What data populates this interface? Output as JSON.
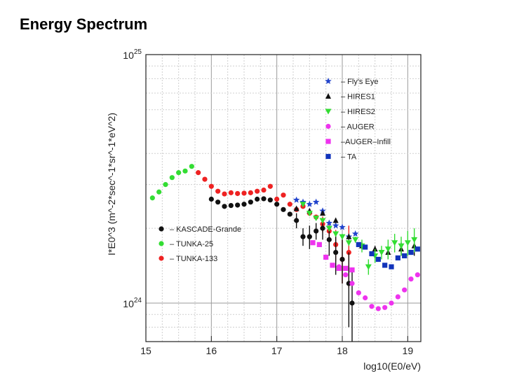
{
  "slide": {
    "title": "Energy Spectrum"
  },
  "chart_data": {
    "type": "scatter",
    "title": "Energy Spectrum",
    "xlabel": "log10(E0/eV)",
    "ylabel": "I*E0^3 (m^-2*sec^-1*sr^-1*eV^2)",
    "xlim": [
      15,
      19.2
    ],
    "ylim": [
      7e+23,
      1e+25
    ],
    "yscale": "log",
    "x_ticks": [
      15,
      16,
      17,
      18,
      19
    ],
    "x_tick_labels": [
      "15",
      "16",
      "17",
      "18",
      "19"
    ],
    "y_tick_labels": [
      {
        "value": 1e+24,
        "base": "10",
        "exp": "24"
      },
      {
        "value": 1e+25,
        "base": "10",
        "exp": "25"
      }
    ],
    "grid": true,
    "legends": [
      {
        "position": "top-right",
        "entries": [
          "Fly's Eye",
          "HIRES1",
          "HIRES2",
          "AUGER",
          "AUGER-Infill",
          "TA"
        ]
      },
      {
        "position": "bottom-left",
        "entries": [
          "KASCADE-Grande",
          "TUNKA-25",
          "TUNKA-133"
        ]
      }
    ],
    "series": [
      {
        "name": "TUNKA-25",
        "label": "– TUNKA-25",
        "marker": "circle",
        "color": "#33dd33",
        "x": [
          15.1,
          15.2,
          15.3,
          15.4,
          15.5,
          15.6,
          15.7
        ],
        "y": [
          2.65e+24,
          2.8e+24,
          3e+24,
          3.2e+24,
          3.35e+24,
          3.4e+24,
          3.55e+24
        ]
      },
      {
        "name": "TUNKA-133",
        "label": "– TUNKA-133",
        "marker": "circle",
        "color": "#ee2222",
        "x": [
          15.8,
          15.9,
          16.0,
          16.1,
          16.2,
          16.3,
          16.4,
          16.5,
          16.6,
          16.7,
          16.8,
          16.9,
          17.0,
          17.1,
          17.2,
          17.3,
          17.4,
          17.5,
          17.6,
          17.7,
          17.8,
          17.9,
          18.0,
          18.1
        ],
        "y": [
          3.35e+24,
          3.15e+24,
          2.95e+24,
          2.82e+24,
          2.75e+24,
          2.78e+24,
          2.76e+24,
          2.77e+24,
          2.78e+24,
          2.82e+24,
          2.85e+24,
          2.95e+24,
          2.62e+24,
          2.72e+24,
          2.5e+24,
          2.38e+24,
          2.45e+24,
          2.3e+24,
          2.22e+24,
          2.08e+24,
          1.95e+24,
          1.72e+24,
          1.5e+24,
          1.6e+24
        ],
        "yerr": [
          0,
          0,
          0,
          0,
          0,
          0,
          0,
          0,
          0,
          0,
          0,
          0,
          0,
          0,
          0,
          0,
          0,
          0,
          0,
          1.5e+23,
          2e+23,
          2.5e+23,
          3e+23,
          4.5e+23
        ]
      },
      {
        "name": "KASCADE-Grande",
        "label": "– KASCADE-Grande",
        "marker": "circle",
        "color": "#111111",
        "x": [
          16.0,
          16.1,
          16.2,
          16.3,
          16.4,
          16.5,
          16.6,
          16.7,
          16.8,
          16.9,
          17.0,
          17.1,
          17.2,
          17.3,
          17.4,
          17.5,
          17.6,
          17.7,
          17.8,
          17.9,
          18.0,
          18.1,
          18.15
        ],
        "y": [
          2.62e+24,
          2.55e+24,
          2.45e+24,
          2.47e+24,
          2.48e+24,
          2.5e+24,
          2.55e+24,
          2.62e+24,
          2.63e+24,
          2.6e+24,
          2.5e+24,
          2.38e+24,
          2.28e+24,
          2.15e+24,
          1.85e+24,
          1.85e+24,
          1.95e+24,
          2e+24,
          1.8e+24,
          1.6e+24,
          1.5e+24,
          1.2e+24,
          1e+24
        ],
        "yerr": [
          0,
          0,
          0,
          0,
          0,
          0,
          0,
          0,
          0,
          0,
          0,
          0,
          0,
          1.5e+23,
          1.5e+23,
          2e+23,
          1.5e+23,
          2e+23,
          2.5e+23,
          3e+23,
          3e+23,
          4e+23,
          3.5e+23
        ]
      },
      {
        "name": "Fly's Eye",
        "label": "– Fly's Eye",
        "marker": "star",
        "color": "#2244cc",
        "x": [
          17.3,
          17.4,
          17.5,
          17.6,
          17.7,
          17.8,
          17.9,
          18.0,
          18.1,
          18.2
        ],
        "y": [
          2.6e+24,
          2.55e+24,
          2.5e+24,
          2.55e+24,
          2.35e+24,
          2.1e+24,
          2.05e+24,
          2.02e+24,
          1.85e+24,
          1.9e+24
        ]
      },
      {
        "name": "HIRES1",
        "label": "– HIRES1",
        "marker": "triangle-up",
        "color": "#111111",
        "x": [
          17.3,
          17.5,
          17.7,
          17.9,
          18.1,
          18.3,
          18.5,
          18.7,
          18.9,
          19.1
        ],
        "y": [
          2.4e+24,
          2.35e+24,
          2.3e+24,
          2.15e+24,
          1.85e+24,
          1.7e+24,
          1.65e+24,
          1.6e+24,
          1.65e+24,
          1.7e+24
        ],
        "yerr": [
          5e+22,
          5e+22,
          5e+22,
          5e+22,
          5e+22,
          5e+22,
          5e+22,
          1e+23,
          1e+23,
          1.5e+23
        ]
      },
      {
        "name": "HIRES2",
        "label": "– HIRES2",
        "marker": "triangle-down",
        "color": "#33dd33",
        "x": [
          17.4,
          17.5,
          17.6,
          17.7,
          17.8,
          17.9,
          18.0,
          18.1,
          18.2,
          18.3,
          18.4,
          18.5,
          18.6,
          18.7,
          18.8,
          18.9,
          19.0,
          19.1
        ],
        "y": [
          2.5e+24,
          2.3e+24,
          2.2e+24,
          2.15e+24,
          2e+24,
          1.9e+24,
          1.85e+24,
          1.75e+24,
          1.8e+24,
          1.7e+24,
          1.4e+24,
          1.55e+24,
          1.6e+24,
          1.65e+24,
          1.75e+24,
          1.7e+24,
          1.75e+24,
          1.8e+24
        ],
        "yerr": [
          5e+22,
          5e+22,
          5e+22,
          5e+22,
          5e+22,
          5e+22,
          5e+22,
          5e+22,
          5e+22,
          1e+23,
          1e+23,
          1e+23,
          1e+23,
          1.5e+23,
          1.5e+23,
          1.5e+23,
          2e+23,
          2e+23
        ]
      },
      {
        "name": "AUGER",
        "label": "– AUGER",
        "marker": "circle",
        "color": "#ee33ee",
        "x": [
          17.95,
          18.05,
          18.15,
          18.25,
          18.35,
          18.45,
          18.55,
          18.65,
          18.75,
          18.85,
          18.95,
          19.05,
          19.15
        ],
        "y": [
          1.4e+24,
          1.3e+24,
          1.2e+24,
          1.1e+24,
          1.05e+24,
          9.7e+23,
          9.5e+23,
          9.6e+23,
          1e+24,
          1.06e+24,
          1.13e+24,
          1.25e+24,
          1.3e+24
        ]
      },
      {
        "name": "AUGER-Infill",
        "label": "–AUGER–Infill",
        "marker": "square",
        "color": "#ee33ee",
        "x": [
          17.55,
          17.65,
          17.75,
          17.85,
          17.95,
          18.05,
          18.15
        ],
        "y": [
          1.75e+24,
          1.72e+24,
          1.53e+24,
          1.42e+24,
          1.38e+24,
          1.38e+24,
          1.36e+24
        ]
      },
      {
        "name": "TA",
        "label": "– TA",
        "marker": "square",
        "color": "#1133bb",
        "x": [
          18.25,
          18.35,
          18.45,
          18.55,
          18.65,
          18.75,
          18.85,
          18.95,
          19.05,
          19.15
        ],
        "y": [
          1.72e+24,
          1.68e+24,
          1.58e+24,
          1.5e+24,
          1.42e+24,
          1.4e+24,
          1.52e+24,
          1.55e+24,
          1.6e+24,
          1.65e+24
        ]
      }
    ]
  }
}
